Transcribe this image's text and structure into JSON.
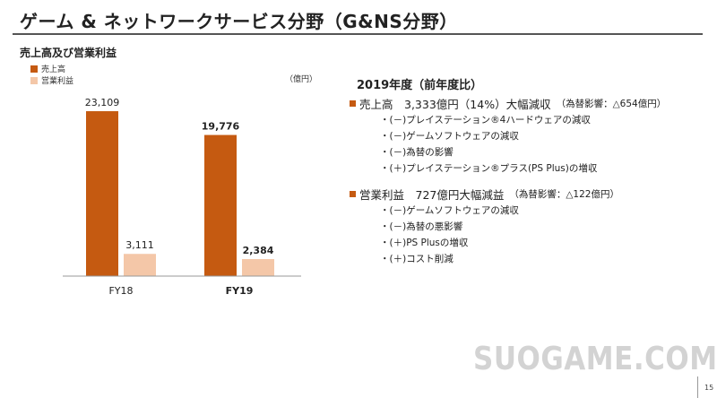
{
  "slide": {
    "title": "ゲーム & ネットワークサービス分野（G&NS分野）",
    "subtitle": "売上高及び営業利益",
    "unit": "（億円）",
    "page_number": "15",
    "watermark": "SUOGAME.COM"
  },
  "legend": [
    {
      "label": "売上高",
      "color": "#c55a11"
    },
    {
      "label": "営業利益",
      "color": "#f4c7a8"
    }
  ],
  "chart_data": {
    "type": "bar",
    "categories": [
      "FY18",
      "FY19"
    ],
    "series": [
      {
        "name": "売上高",
        "values": [
          23109,
          19776
        ],
        "color": "#c55a11"
      },
      {
        "name": "営業利益",
        "values": [
          3111,
          2384
        ],
        "color": "#f4c7a8"
      }
    ],
    "data_labels": [
      [
        "23,109",
        "19,776"
      ],
      [
        "3,111",
        "2,384"
      ]
    ],
    "bold_categories": [
      "FY19"
    ],
    "ylabel": "（億円）",
    "ylim": [
      0,
      25500
    ],
    "grid": false
  },
  "commentary": {
    "period": "2019年度（前年度比）",
    "sales": {
      "headline": "売上高　3,333億円（14%）大幅減収",
      "note": "（為替影響：△654億円）",
      "items": [
        "・(－)プレイステーション®4ハードウェアの減収",
        "・(－)ゲームソフトウェアの減収",
        "・(－)為替の影響",
        "・(＋)プレイステーション®プラス(PS Plus)の増収"
      ]
    },
    "profit": {
      "headline": "営業利益　727億円大幅減益",
      "note": "（為替影響：△122億円）",
      "items": [
        "・(－)ゲームソフトウェアの減収",
        "・(－)為替の悪影響",
        "・(＋)PS Plusの増収",
        "・(＋)コスト削減"
      ]
    }
  }
}
